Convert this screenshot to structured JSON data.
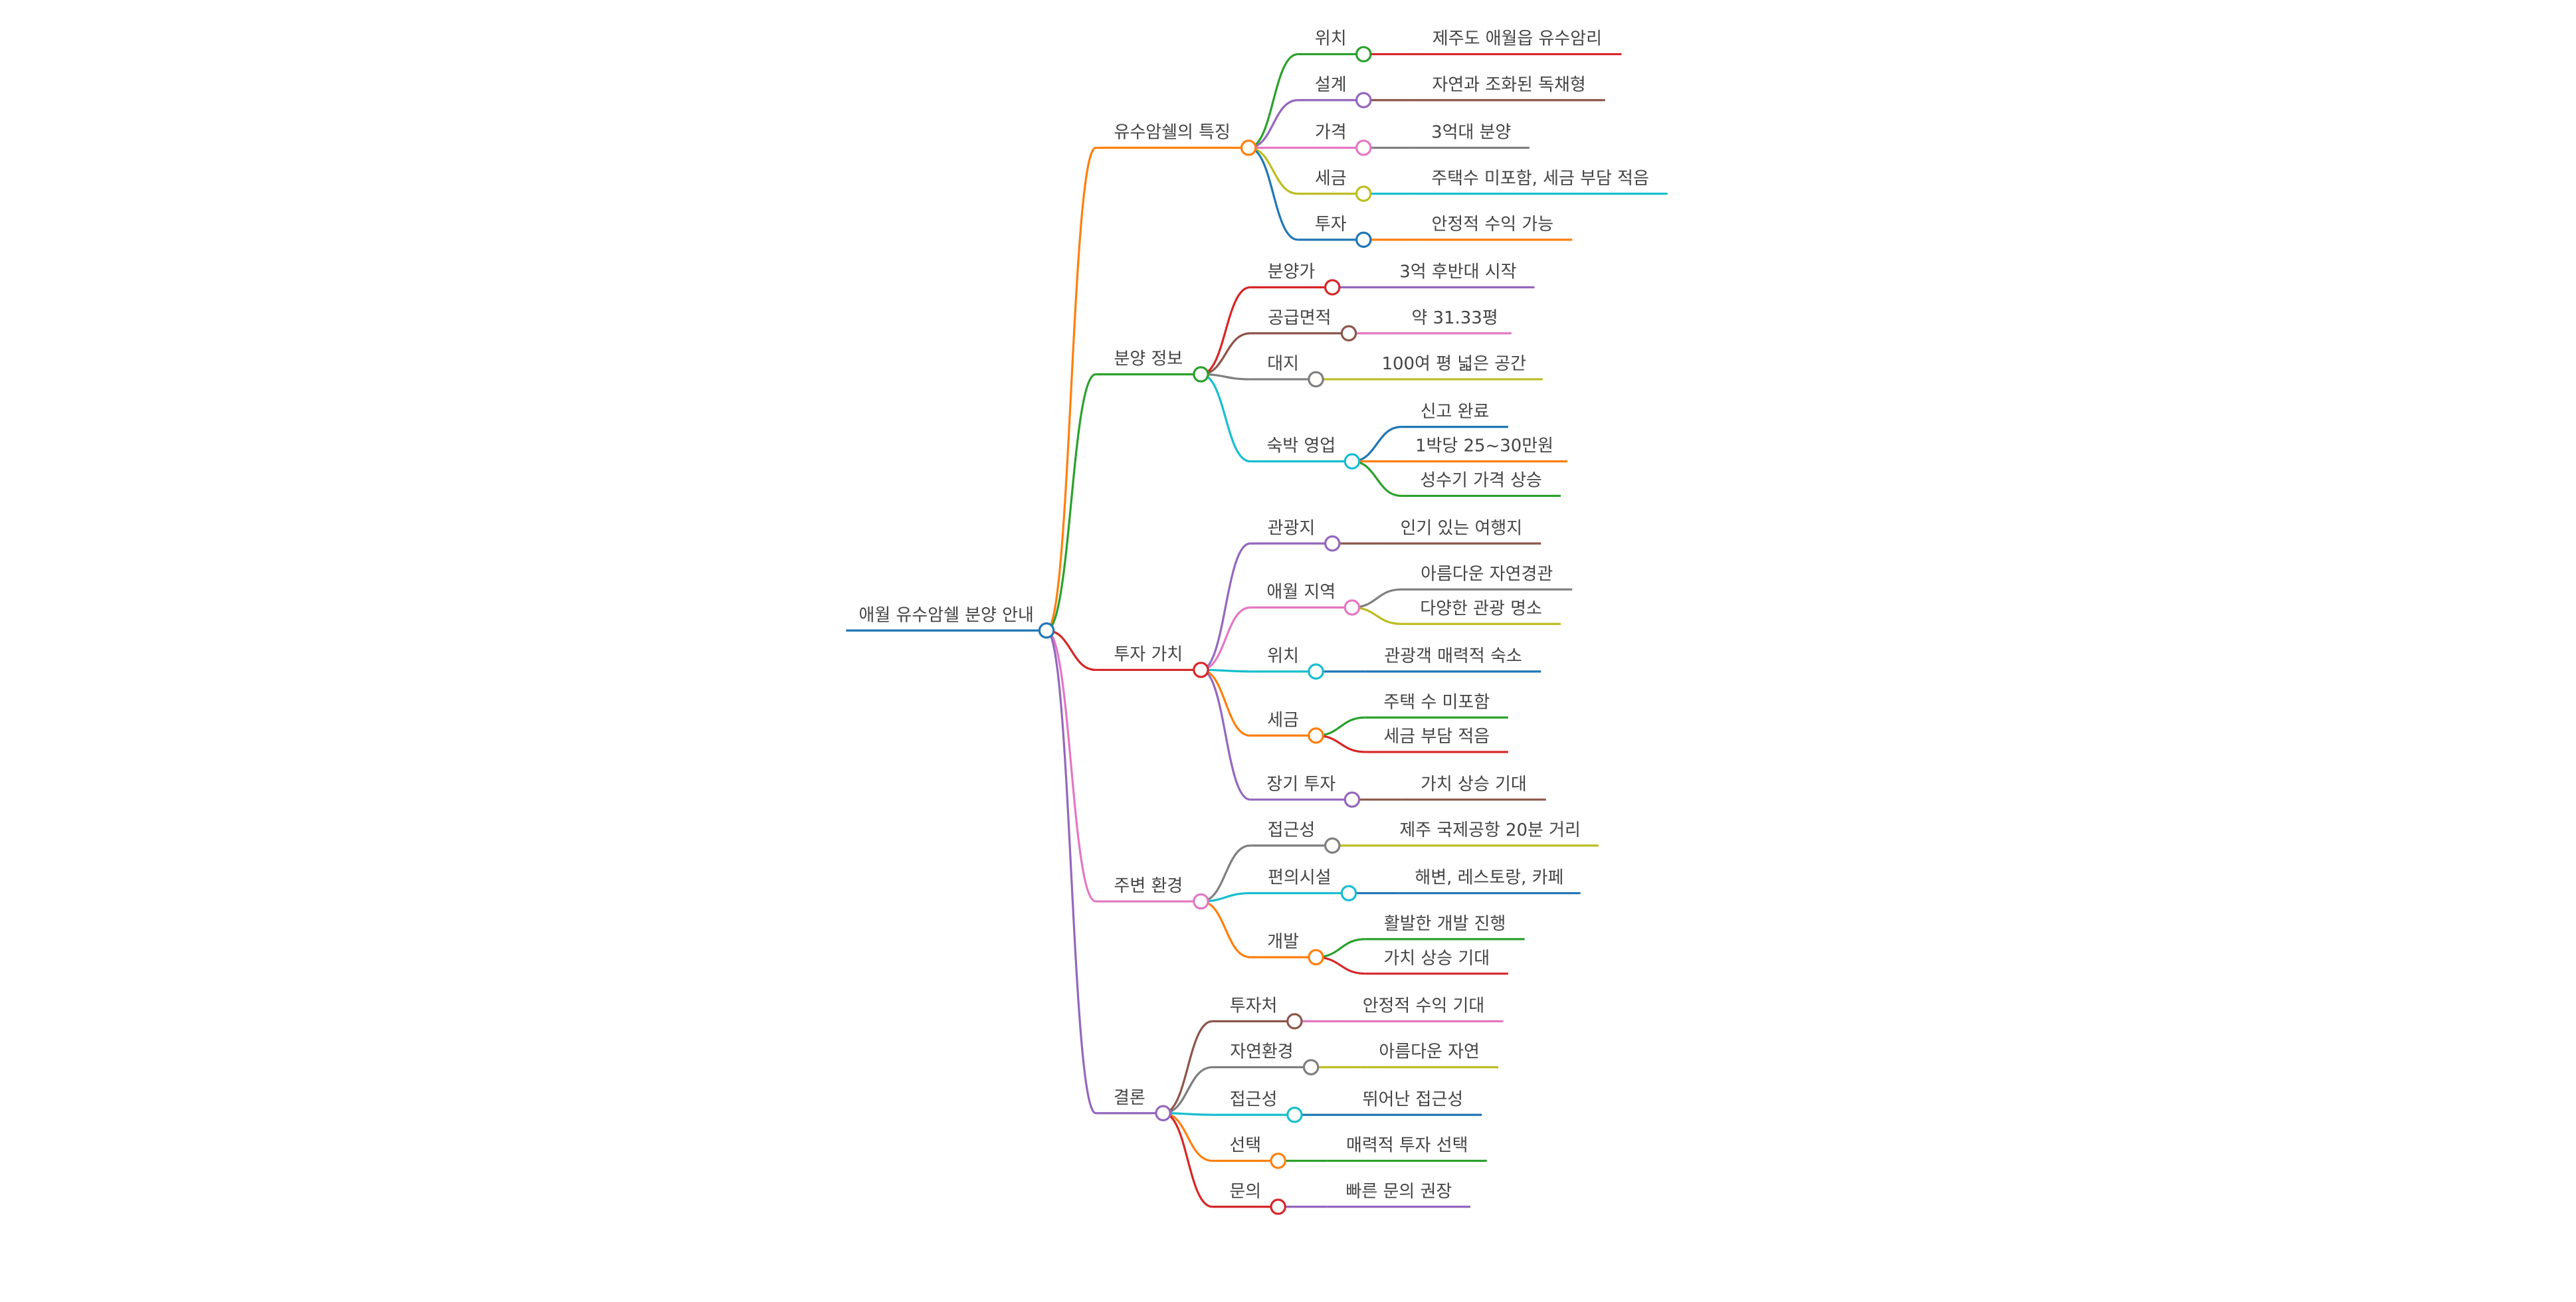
{
  "root": {
    "label": "애월 유수암쉘 분양 안내",
    "children": [
      {
        "label": "유수암쉘의 특징",
        "children": [
          {
            "label": "위치",
            "children": [
              {
                "label": "제주도 애월읍 유수암리"
              }
            ]
          },
          {
            "label": "설계",
            "children": [
              {
                "label": "자연과 조화된 독채형"
              }
            ]
          },
          {
            "label": "가격",
            "children": [
              {
                "label": "3억대 분양"
              }
            ]
          },
          {
            "label": "세금",
            "children": [
              {
                "label": "주택수 미포함, 세금 부담 적음"
              }
            ]
          },
          {
            "label": "투자",
            "children": [
              {
                "label": "안정적 수익 가능"
              }
            ]
          }
        ]
      },
      {
        "label": "분양 정보",
        "children": [
          {
            "label": "분양가",
            "children": [
              {
                "label": "3억 후반대 시작"
              }
            ]
          },
          {
            "label": "공급면적",
            "children": [
              {
                "label": "약 31.33평"
              }
            ]
          },
          {
            "label": "대지",
            "children": [
              {
                "label": "100여 평 넓은 공간"
              }
            ]
          },
          {
            "label": "숙박 영업",
            "children": [
              {
                "label": "신고 완료"
              },
              {
                "label": "1박당 25~30만원"
              },
              {
                "label": "성수기 가격 상승"
              }
            ]
          }
        ]
      },
      {
        "label": "투자 가치",
        "children": [
          {
            "label": "관광지",
            "children": [
              {
                "label": "인기 있는 여행지"
              }
            ]
          },
          {
            "label": "애월 지역",
            "children": [
              {
                "label": "아름다운 자연경관"
              },
              {
                "label": "다양한 관광 명소"
              }
            ]
          },
          {
            "label": "위치",
            "children": [
              {
                "label": "관광객 매력적 숙소"
              }
            ]
          },
          {
            "label": "세금",
            "children": [
              {
                "label": "주택 수 미포함"
              },
              {
                "label": "세금 부담 적음"
              }
            ]
          },
          {
            "label": "장기 투자",
            "children": [
              {
                "label": "가치 상승 기대"
              }
            ]
          }
        ]
      },
      {
        "label": "주변 환경",
        "children": [
          {
            "label": "접근성",
            "children": [
              {
                "label": "제주 국제공항 20분 거리"
              }
            ]
          },
          {
            "label": "편의시설",
            "children": [
              {
                "label": "해변, 레스토랑, 카페"
              }
            ]
          },
          {
            "label": "개발",
            "children": [
              {
                "label": "활발한 개발 진행"
              },
              {
                "label": "가치 상승 기대"
              }
            ]
          }
        ]
      },
      {
        "label": "결론",
        "children": [
          {
            "label": "투자처",
            "children": [
              {
                "label": "안정적 수익 기대"
              }
            ]
          },
          {
            "label": "자연환경",
            "children": [
              {
                "label": "아름다운 자연"
              }
            ]
          },
          {
            "label": "접근성",
            "children": [
              {
                "label": "뛰어난 접근성"
              }
            ]
          },
          {
            "label": "선택",
            "children": [
              {
                "label": "매력적 투자 선택"
              }
            ]
          },
          {
            "label": "문의",
            "children": [
              {
                "label": "빠른 문의 권장"
              }
            ]
          }
        ]
      }
    ]
  }
}
